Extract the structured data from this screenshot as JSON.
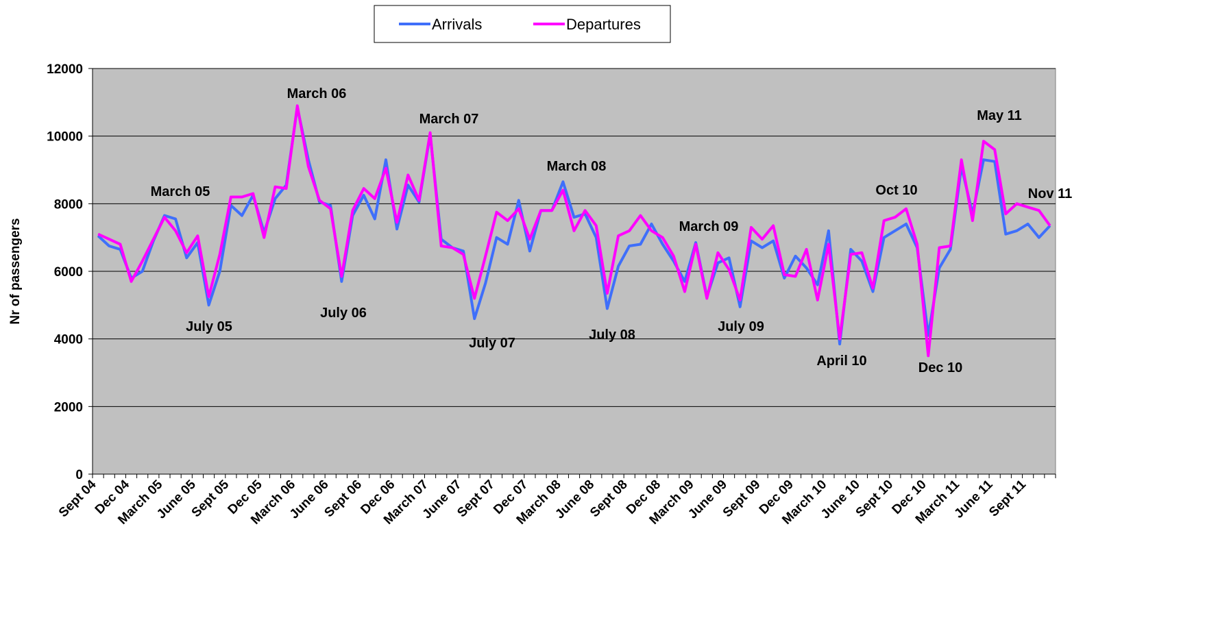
{
  "chart_data": {
    "type": "line",
    "y_label": "Nr of passengers",
    "categories": [
      "Sept 04",
      null,
      null,
      "Dec 04",
      null,
      null,
      "March 05",
      null,
      null,
      "June 05",
      null,
      null,
      "Sept 05",
      null,
      null,
      "Dec 05",
      null,
      null,
      "March 06",
      null,
      null,
      "June 06",
      null,
      null,
      "Sept 06",
      null,
      null,
      "Dec 06",
      null,
      null,
      "March 07",
      null,
      null,
      "June 07",
      null,
      null,
      "Sept 07",
      null,
      null,
      "Dec 07",
      null,
      null,
      "March 08",
      null,
      null,
      "June 08",
      null,
      null,
      "Sept 08",
      null,
      null,
      "Dec 08",
      null,
      null,
      "March 09",
      null,
      null,
      "June 09",
      null,
      null,
      "Sept 09",
      null,
      null,
      "Dec 09",
      null,
      null,
      "March 10",
      null,
      null,
      "June 10",
      null,
      null,
      "Sept 10",
      null,
      null,
      "Dec 10",
      null,
      null,
      "March 11",
      null,
      null,
      "June 11",
      null,
      null,
      "Sept 11",
      null,
      null
    ],
    "series": [
      {
        "name": "Arrivals",
        "color": "#3f6ffa",
        "values": [
          7050,
          6750,
          6650,
          5800,
          6000,
          6900,
          7650,
          7550,
          6400,
          6850,
          5000,
          6000,
          7950,
          7650,
          8250,
          7150,
          8150,
          8550,
          10850,
          9300,
          8050,
          7950,
          5700,
          7650,
          8250,
          7550,
          9300,
          7250,
          8550,
          8050,
          10050,
          6950,
          6700,
          6600,
          4600,
          5650,
          7000,
          6800,
          8100,
          6600,
          7800,
          7800,
          8650,
          7600,
          7700,
          7000,
          4900,
          6150,
          6750,
          6800,
          7400,
          6800,
          6300,
          5700,
          6850,
          5250,
          6250,
          6400,
          4950,
          6900,
          6700,
          6900,
          5800,
          6450,
          6100,
          5600,
          7200,
          3850,
          6650,
          6300,
          5400,
          7000,
          7200,
          7400,
          6700,
          4100,
          6100,
          6650,
          9100,
          7700,
          9300,
          9250,
          7100,
          7200,
          7400,
          7000,
          7350
        ]
      },
      {
        "name": "Departures",
        "color": "#ff00ff",
        "values": [
          7100,
          6950,
          6800,
          5700,
          6300,
          6950,
          7600,
          7200,
          6550,
          7050,
          5250,
          6500,
          8200,
          8200,
          8300,
          7000,
          8500,
          8450,
          10900,
          9100,
          8100,
          7850,
          5850,
          7800,
          8450,
          8150,
          9050,
          7450,
          8850,
          8100,
          10100,
          6750,
          6700,
          6500,
          5200,
          6450,
          7750,
          7500,
          7850,
          6950,
          7800,
          7800,
          8400,
          7200,
          7800,
          7350,
          5350,
          7050,
          7200,
          7650,
          7200,
          7000,
          6450,
          5400,
          6800,
          5200,
          6550,
          6050,
          5150,
          7300,
          6950,
          7350,
          5900,
          5850,
          6650,
          5150,
          6800,
          4000,
          6500,
          6550,
          5500,
          7500,
          7600,
          7850,
          6800,
          3500,
          6700,
          6750,
          9300,
          7500,
          9850,
          9600,
          7700,
          8000,
          7900,
          7800,
          7350
        ]
      }
    ],
    "ylim": [
      0,
      12000
    ],
    "yticks": [
      0,
      2000,
      4000,
      6000,
      8000,
      10000,
      12000
    ],
    "grid": true,
    "background": "#c0c0c0",
    "legend": "top",
    "annotations": [
      "March 05",
      "July 05",
      "March 06",
      "July 06",
      "March 07",
      "July 07",
      "March 08",
      "July 08",
      "March 09",
      "July 09",
      "April 10",
      "Oct 10",
      "Dec 10",
      "May 11",
      "Nov 11"
    ]
  }
}
